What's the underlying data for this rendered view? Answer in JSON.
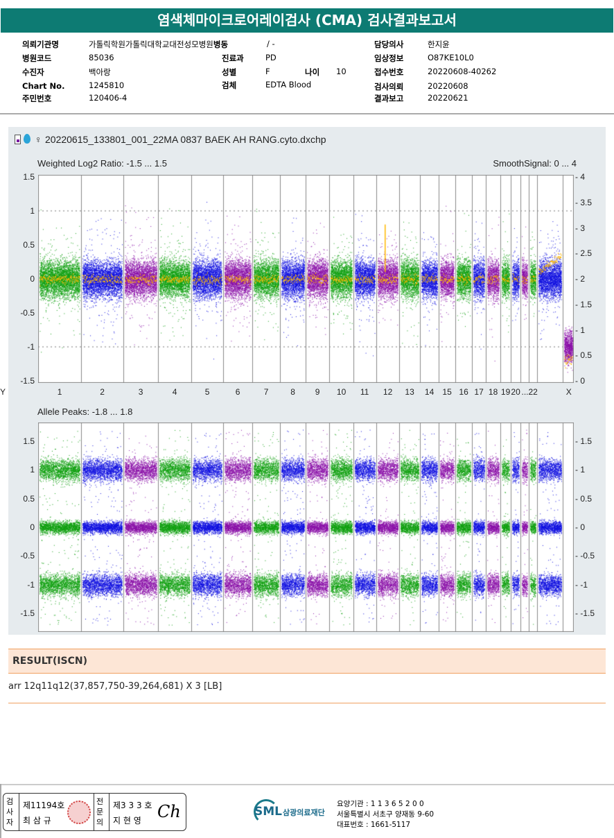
{
  "title": "염색체마이크로어레이검사 (CMA) 검사결과보고서",
  "info": {
    "institution_label": "의뢰기관명",
    "institution": "가톨릭학원가톨릭대학교대전성모병원",
    "ward": "병동",
    "ward_value": "/ -",
    "doctor_label": "담당의사",
    "doctor": "한지윤",
    "hospital_code_label": "병원코드",
    "hospital_code": "85036",
    "dept_label": "진료과",
    "dept": "PD",
    "clinical_label": "임상정보",
    "clinical": "O87KE10L0",
    "patient_label": "수진자",
    "patient": "백아랑",
    "sex_label": "성별",
    "sex": "F",
    "age_label": "나이",
    "age": "10",
    "receipt_label": "접수번호",
    "receipt": "20220608-40262",
    "chart_label": "Chart No.",
    "chart": "1245810",
    "specimen_label": "검체",
    "specimen": "EDTA Blood",
    "request_label": "검사의뢰",
    "request": "20220608",
    "id_label": "주민번호",
    "id": "120406-4",
    "report_label": "결과보고",
    "report": "20220621"
  },
  "chart_data": [
    {
      "type": "scatter",
      "title": "Weighted Log2 Ratio: -1.5 ... 1.5",
      "right_title": "SmoothSignal: 0 ... 4",
      "file": "20220615_133801_001_22MA 0837 BAEK AH RANG.cyto.dxchp",
      "sex_symbol": "♀",
      "ylim": [
        -1.5,
        1.5
      ],
      "y_ticks": [
        "1.5",
        "1",
        "0.5",
        "0",
        "-0.5",
        "-1",
        "-1.5"
      ],
      "y2lim": [
        0,
        4
      ],
      "y2_ticks": [
        "4",
        "3.5",
        "3",
        "2.5",
        "2",
        "1.5",
        "1",
        "0.5",
        "0"
      ],
      "x_labels": [
        "1",
        "2",
        "3",
        "4",
        "5",
        "6",
        "7",
        "8",
        "9",
        "10",
        "11",
        "12",
        "13",
        "14",
        "15",
        "16",
        "17",
        "18",
        "19",
        "20",
        "...22",
        "X",
        "Y"
      ],
      "smooth_color": "#ffb800",
      "grid": true
    },
    {
      "type": "scatter",
      "title": "Allele Peaks: -1.8 ... 1.8",
      "ylim": [
        -1.8,
        1.8
      ],
      "y_ticks": [
        "1.5",
        "1",
        "0.5",
        "0",
        "-0.5",
        "-1",
        "-1.5"
      ],
      "peaks": [
        1,
        0,
        -1
      ]
    }
  ],
  "colors": {
    "green": "#10a010",
    "blue": "#1010e0",
    "purple": "#8a10a8",
    "teal": "#0d7b73"
  },
  "result": {
    "header": "RESULT(ISCN)",
    "text": "arr 12q11q12(37,857,750-39,264,681) X 3 [LB]"
  },
  "footer": {
    "tech_label": "검사자",
    "tech_no": "제11194호",
    "tech_name": "최 삼 규",
    "spec_label": "전문의",
    "spec_no": "제3 3 3 호",
    "spec_name": "지 현 영",
    "logo": "SML",
    "org": "삼광의료재단",
    "agency": "요양기관 : 1 1 3 6 5 2 0 0",
    "address": "서울특별시 서초구 양재동 9-60",
    "phone": "대표번호 : 1661-5117"
  }
}
